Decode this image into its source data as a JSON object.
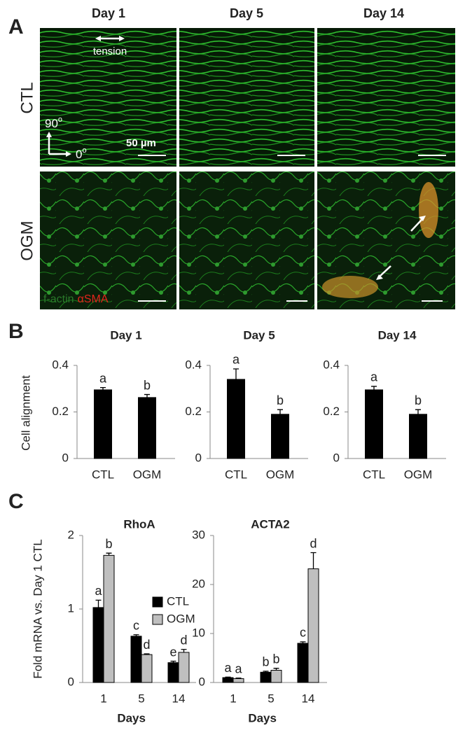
{
  "panel_labels": [
    "A",
    "B",
    "C"
  ],
  "panel_a": {
    "columns": [
      "Day 1",
      "Day 5",
      "Day 14"
    ],
    "rows": [
      "CTL",
      "OGM"
    ],
    "tension": "tension",
    "axis_90": {
      "base": "90",
      "sup": "o"
    },
    "axis_0": {
      "base": "0",
      "sup": "o"
    },
    "scale_bar": "50 µm",
    "stain_green": "f-actin",
    "stain_red": "αSMA"
  },
  "chart_data": [
    {
      "type": "bar",
      "title": "Day 1",
      "y_label": "Cell alignment",
      "categories": [
        "CTL",
        "OGM"
      ],
      "values": [
        0.295,
        0.262
      ],
      "errors": [
        0.01,
        0.013
      ],
      "letters": [
        "a",
        "b"
      ],
      "color": "#000000",
      "ylim": [
        0,
        0.4
      ],
      "yticks": [
        0,
        0.2,
        0.4
      ]
    },
    {
      "type": "bar",
      "title": "Day 5",
      "categories": [
        "CTL",
        "OGM"
      ],
      "values": [
        0.34,
        0.19
      ],
      "errors": [
        0.045,
        0.02
      ],
      "letters": [
        "a",
        "b"
      ],
      "color": "#000000",
      "ylim": [
        0,
        0.4
      ],
      "yticks": [
        0,
        0.2,
        0.4
      ]
    },
    {
      "type": "bar",
      "title": "Day 14",
      "categories": [
        "CTL",
        "OGM"
      ],
      "values": [
        0.295,
        0.19
      ],
      "errors": [
        0.015,
        0.02
      ],
      "letters": [
        "a",
        "b"
      ],
      "color": "#000000",
      "ylim": [
        0,
        0.4
      ],
      "yticks": [
        0,
        0.2,
        0.4
      ]
    },
    {
      "type": "grouped_bar",
      "title": "RhoA",
      "y_label": "Fold mRNA vs. Day 1 CTL",
      "x_label": "Days",
      "categories": [
        "1",
        "5",
        "14"
      ],
      "series": [
        {
          "name": "CTL",
          "color": "#000000",
          "values": [
            1.02,
            0.63,
            0.27
          ],
          "errors": [
            0.1,
            0.02,
            0.02
          ],
          "letters": [
            "a",
            "c",
            "e"
          ]
        },
        {
          "name": "OGM",
          "color": "#bfbfbf",
          "values": [
            1.73,
            0.38,
            0.41
          ],
          "errors": [
            0.03,
            0.01,
            0.04
          ],
          "letters": [
            "b",
            "d",
            "d"
          ]
        }
      ],
      "ylim": [
        0,
        2
      ],
      "yticks": [
        0,
        1,
        2
      ]
    },
    {
      "type": "grouped_bar",
      "title": "ACTA2",
      "x_label": "Days",
      "categories": [
        "1",
        "5",
        "14"
      ],
      "series": [
        {
          "color": "#000000",
          "values": [
            1,
            2.1,
            8
          ],
          "errors": [
            0.1,
            0.2,
            0.3
          ],
          "letters": [
            "a",
            "b",
            "c"
          ]
        },
        {
          "color": "#bfbfbf",
          "values": [
            0.8,
            2.5,
            23.2
          ],
          "errors": [
            0.1,
            0.4,
            3.3
          ],
          "letters": [
            "a",
            "b",
            "d"
          ]
        }
      ],
      "ylim": [
        0,
        30
      ],
      "yticks": [
        0,
        10,
        20,
        30
      ]
    }
  ]
}
